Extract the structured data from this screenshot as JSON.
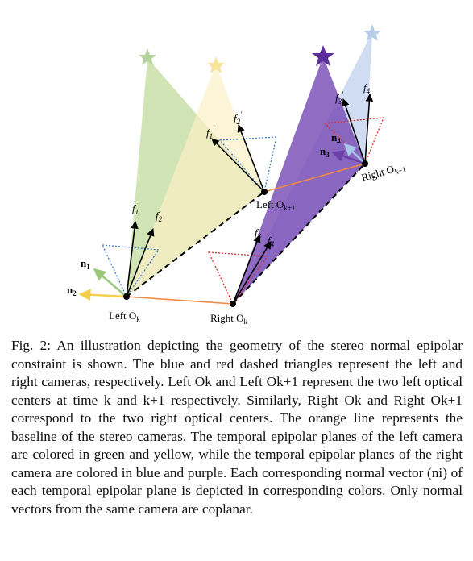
{
  "labels": {
    "left_ok": "Left O",
    "left_ok_sub": "k",
    "left_ok1": "Left O",
    "left_ok1_sub": "k+1",
    "right_ok": "Right O",
    "right_ok_sub": "k",
    "right_ok1": "Right O",
    "right_ok1_sub": "k+1",
    "f1": "f",
    "f1_sub": "1",
    "f2": "f",
    "f2_sub": "2",
    "f3": "f",
    "f3_sub": "3",
    "f4": "f",
    "f4_sub": "4",
    "f1p": "f",
    "f1p_sub": "1",
    "f2p": "f",
    "f2p_sub": "2",
    "f3p": "f",
    "f3p_sub": "3",
    "f4p": "f",
    "f4p_sub": "4",
    "prime": "′",
    "n1": "n",
    "n1_sub": "1",
    "n2": "n",
    "n2_sub": "2",
    "n3": "n",
    "n3_sub": "3",
    "n4": "n",
    "n4_sub": "4"
  },
  "colors": {
    "green": "#c9dfa8",
    "yellow": "#fbf0c4",
    "purple": "#7d52b8",
    "blue": "#c7d6ee",
    "orange": "#f08a43",
    "blue_dotted": "#3c78c8",
    "red_dotted": "#e02a2a",
    "n1": "#9ac77a",
    "n2": "#f2d04a",
    "n3": "#6a3fa8",
    "n4": "#a9c8ea"
  },
  "caption": "Fig. 2: An illustration depicting the geometry of the stereo normal epipolar constraint is shown. The blue and red dashed triangles represent the left and right cameras, respectively. Left Ok and Left Ok+1 represent the two left optical centers at time k and k+1 respectively. Similarly, Right Ok and Right Ok+1 correspond to the two right optical centers. The orange line represents the baseline of the stereo cameras. The temporal epipolar planes of the left camera are colored in green and yellow, while the temporal epipolar planes of the right camera are colored in blue and purple. Each corresponding normal vector (ni) of each temporal epipolar plane is depicted in corresponding colors. Only normal vectors from the same camera are coplanar."
}
